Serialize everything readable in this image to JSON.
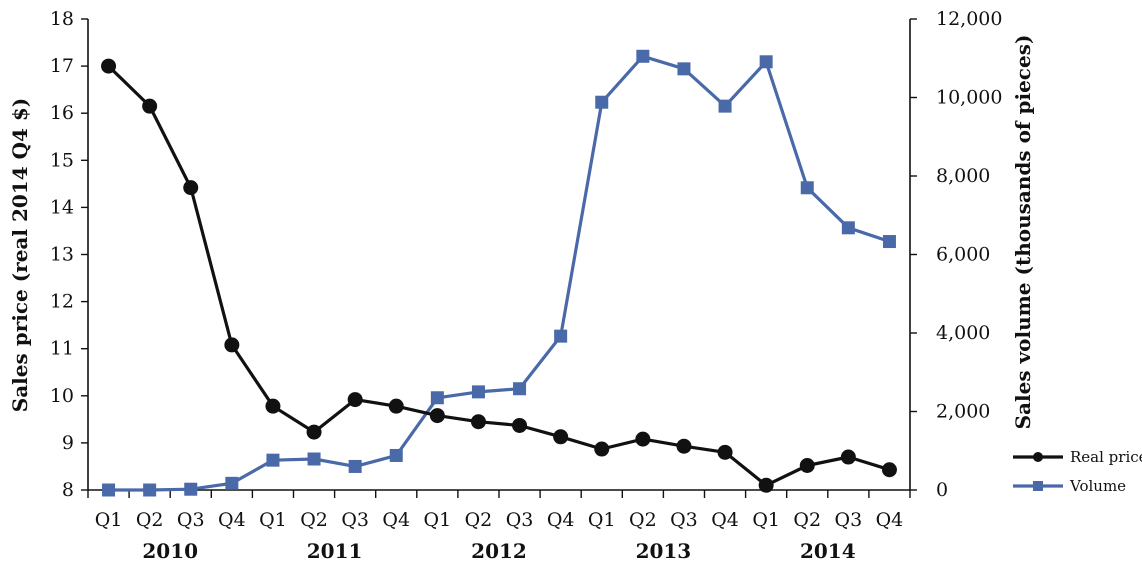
{
  "chart_data": {
    "type": "line",
    "x_quarters": [
      "Q1",
      "Q2",
      "Q3",
      "Q4",
      "Q1",
      "Q2",
      "Q3",
      "Q4",
      "Q1",
      "Q2",
      "Q3",
      "Q4",
      "Q1",
      "Q2",
      "Q3",
      "Q4",
      "Q1",
      "Q2",
      "Q3",
      "Q4"
    ],
    "x_years": [
      "2010",
      "2011",
      "2012",
      "2013",
      "2014"
    ],
    "ylabel_left": "Sales price (real 2014 Q4 $)",
    "ylabel_right": "Sales volume (thousands of pieces)",
    "ylim_left": [
      8,
      18
    ],
    "ylim_right": [
      0,
      12000
    ],
    "yticks_left": [
      "8",
      "9",
      "10",
      "11",
      "12",
      "13",
      "14",
      "15",
      "16",
      "17",
      "18"
    ],
    "yticks_right": [
      "0",
      "2,000",
      "4,000",
      "6,000",
      "8,000",
      "10,000",
      "12,000"
    ],
    "series": [
      {
        "name": "Real price",
        "axis": "left",
        "color": "#111111",
        "marker": "circle",
        "values": [
          17.0,
          16.15,
          14.42,
          11.08,
          9.78,
          9.23,
          9.92,
          9.78,
          9.58,
          9.45,
          9.37,
          9.13,
          8.87,
          9.08,
          8.93,
          8.8,
          8.1,
          8.52,
          8.7,
          8.43
        ]
      },
      {
        "name": "Volume",
        "axis": "right",
        "color": "#4a69a8",
        "marker": "square",
        "values": [
          0,
          0,
          20,
          170,
          760,
          790,
          600,
          880,
          2350,
          2500,
          2580,
          3920,
          9880,
          11050,
          10730,
          9780,
          10910,
          7700,
          6680,
          6330
        ]
      }
    ],
    "legend_position": "right",
    "grid": false
  }
}
